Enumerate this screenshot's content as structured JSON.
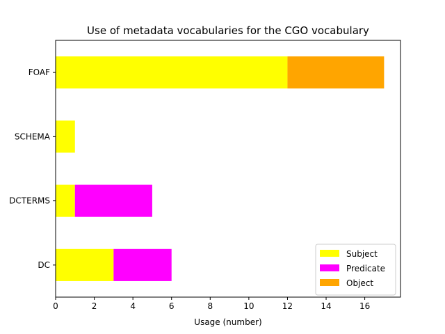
{
  "chart_data": {
    "type": "bar",
    "orientation": "horizontal",
    "stacked": true,
    "title": "Use of metadata vocabularies for the CGO vocabulary",
    "xlabel": "Usage (number)",
    "ylabel": "",
    "categories": [
      "DC",
      "DCTERMS",
      "SCHEMA",
      "FOAF"
    ],
    "series": [
      {
        "name": "Subject",
        "color": "#ffff00",
        "values": [
          3,
          1,
          1,
          12
        ]
      },
      {
        "name": "Predicate",
        "color": "#ff00ff",
        "values": [
          3,
          4,
          0,
          0
        ]
      },
      {
        "name": "Object",
        "color": "#ffa500",
        "values": [
          0,
          0,
          0,
          5
        ]
      }
    ],
    "xlim": [
      0,
      17.85
    ],
    "xticks": [
      0,
      2,
      4,
      6,
      8,
      10,
      12,
      14,
      16
    ],
    "grid": false,
    "legend_position": "lower-right"
  }
}
